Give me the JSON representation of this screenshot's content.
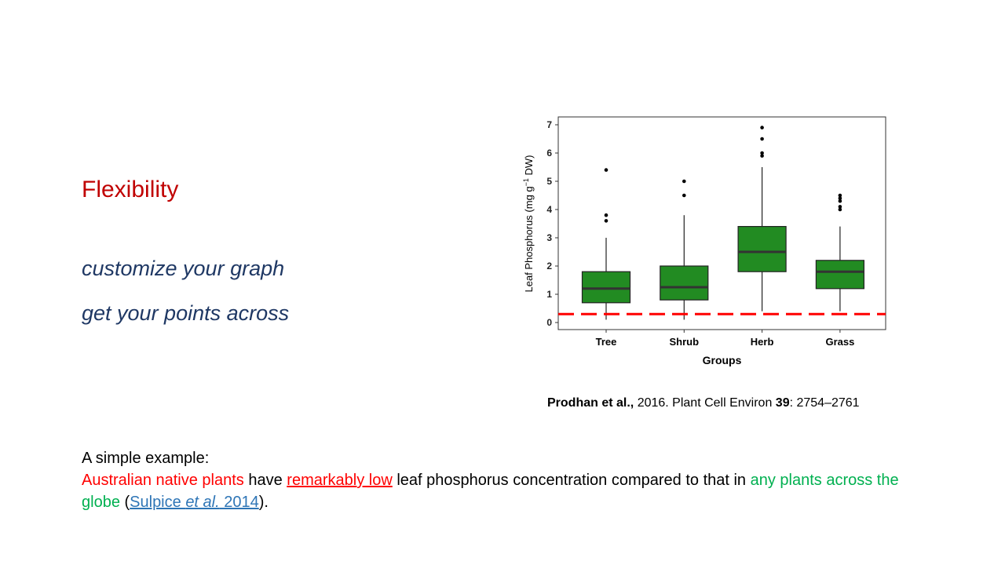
{
  "slide": {
    "heading": "Flexibility",
    "bullets": [
      "customize your graph",
      "get your points across"
    ],
    "citation": {
      "authors": "Prodhan et al.,",
      "year_journal": " 2016. Plant Cell Environ ",
      "volume": "39",
      "pages": ": 2754–2761"
    },
    "example": {
      "intro": "A simple example:",
      "part1": "Australian native plants",
      "part2": " have ",
      "part3": "remarkably low",
      "part4": " leaf phosphorus  concentration compared to that in ",
      "part5": "any plants across the globe",
      "part6": " (",
      "link_a": "Sulpice ",
      "link_b": "et al.",
      "link_c": " 2014",
      "part7": ")."
    }
  },
  "chart_data": {
    "type": "box",
    "xlabel": "Groups",
    "ylabel_prefix": "Leaf Phosphorus  (mg g",
    "ylabel_sup": "−1",
    "ylabel_suffix": " DW)",
    "ylim": [
      0,
      7
    ],
    "yticks": [
      0,
      1,
      2,
      3,
      4,
      5,
      6,
      7
    ],
    "categories": [
      "Tree",
      "Shrub",
      "Herb",
      "Grass"
    ],
    "box_color": "#228b22",
    "reference_line": {
      "y": 0.3,
      "color": "#ff0000",
      "style": "dashed"
    },
    "boxes": [
      {
        "group": "Tree",
        "min": 0.1,
        "q1": 0.7,
        "median": 1.2,
        "q3": 1.8,
        "max": 3.0,
        "outliers": [
          3.6,
          3.8,
          5.4
        ]
      },
      {
        "group": "Shrub",
        "min": 0.1,
        "q1": 0.8,
        "median": 1.25,
        "q3": 2.0,
        "max": 3.8,
        "outliers": [
          4.5,
          5.0
        ]
      },
      {
        "group": "Herb",
        "min": 0.4,
        "q1": 1.8,
        "median": 2.5,
        "q3": 3.4,
        "max": 5.5,
        "outliers": [
          5.9,
          6.0,
          6.5,
          6.9
        ]
      },
      {
        "group": "Grass",
        "min": 0.4,
        "q1": 1.2,
        "median": 1.8,
        "q3": 2.2,
        "max": 3.4,
        "outliers": [
          4.0,
          4.1,
          4.3,
          4.4,
          4.5
        ]
      }
    ]
  }
}
